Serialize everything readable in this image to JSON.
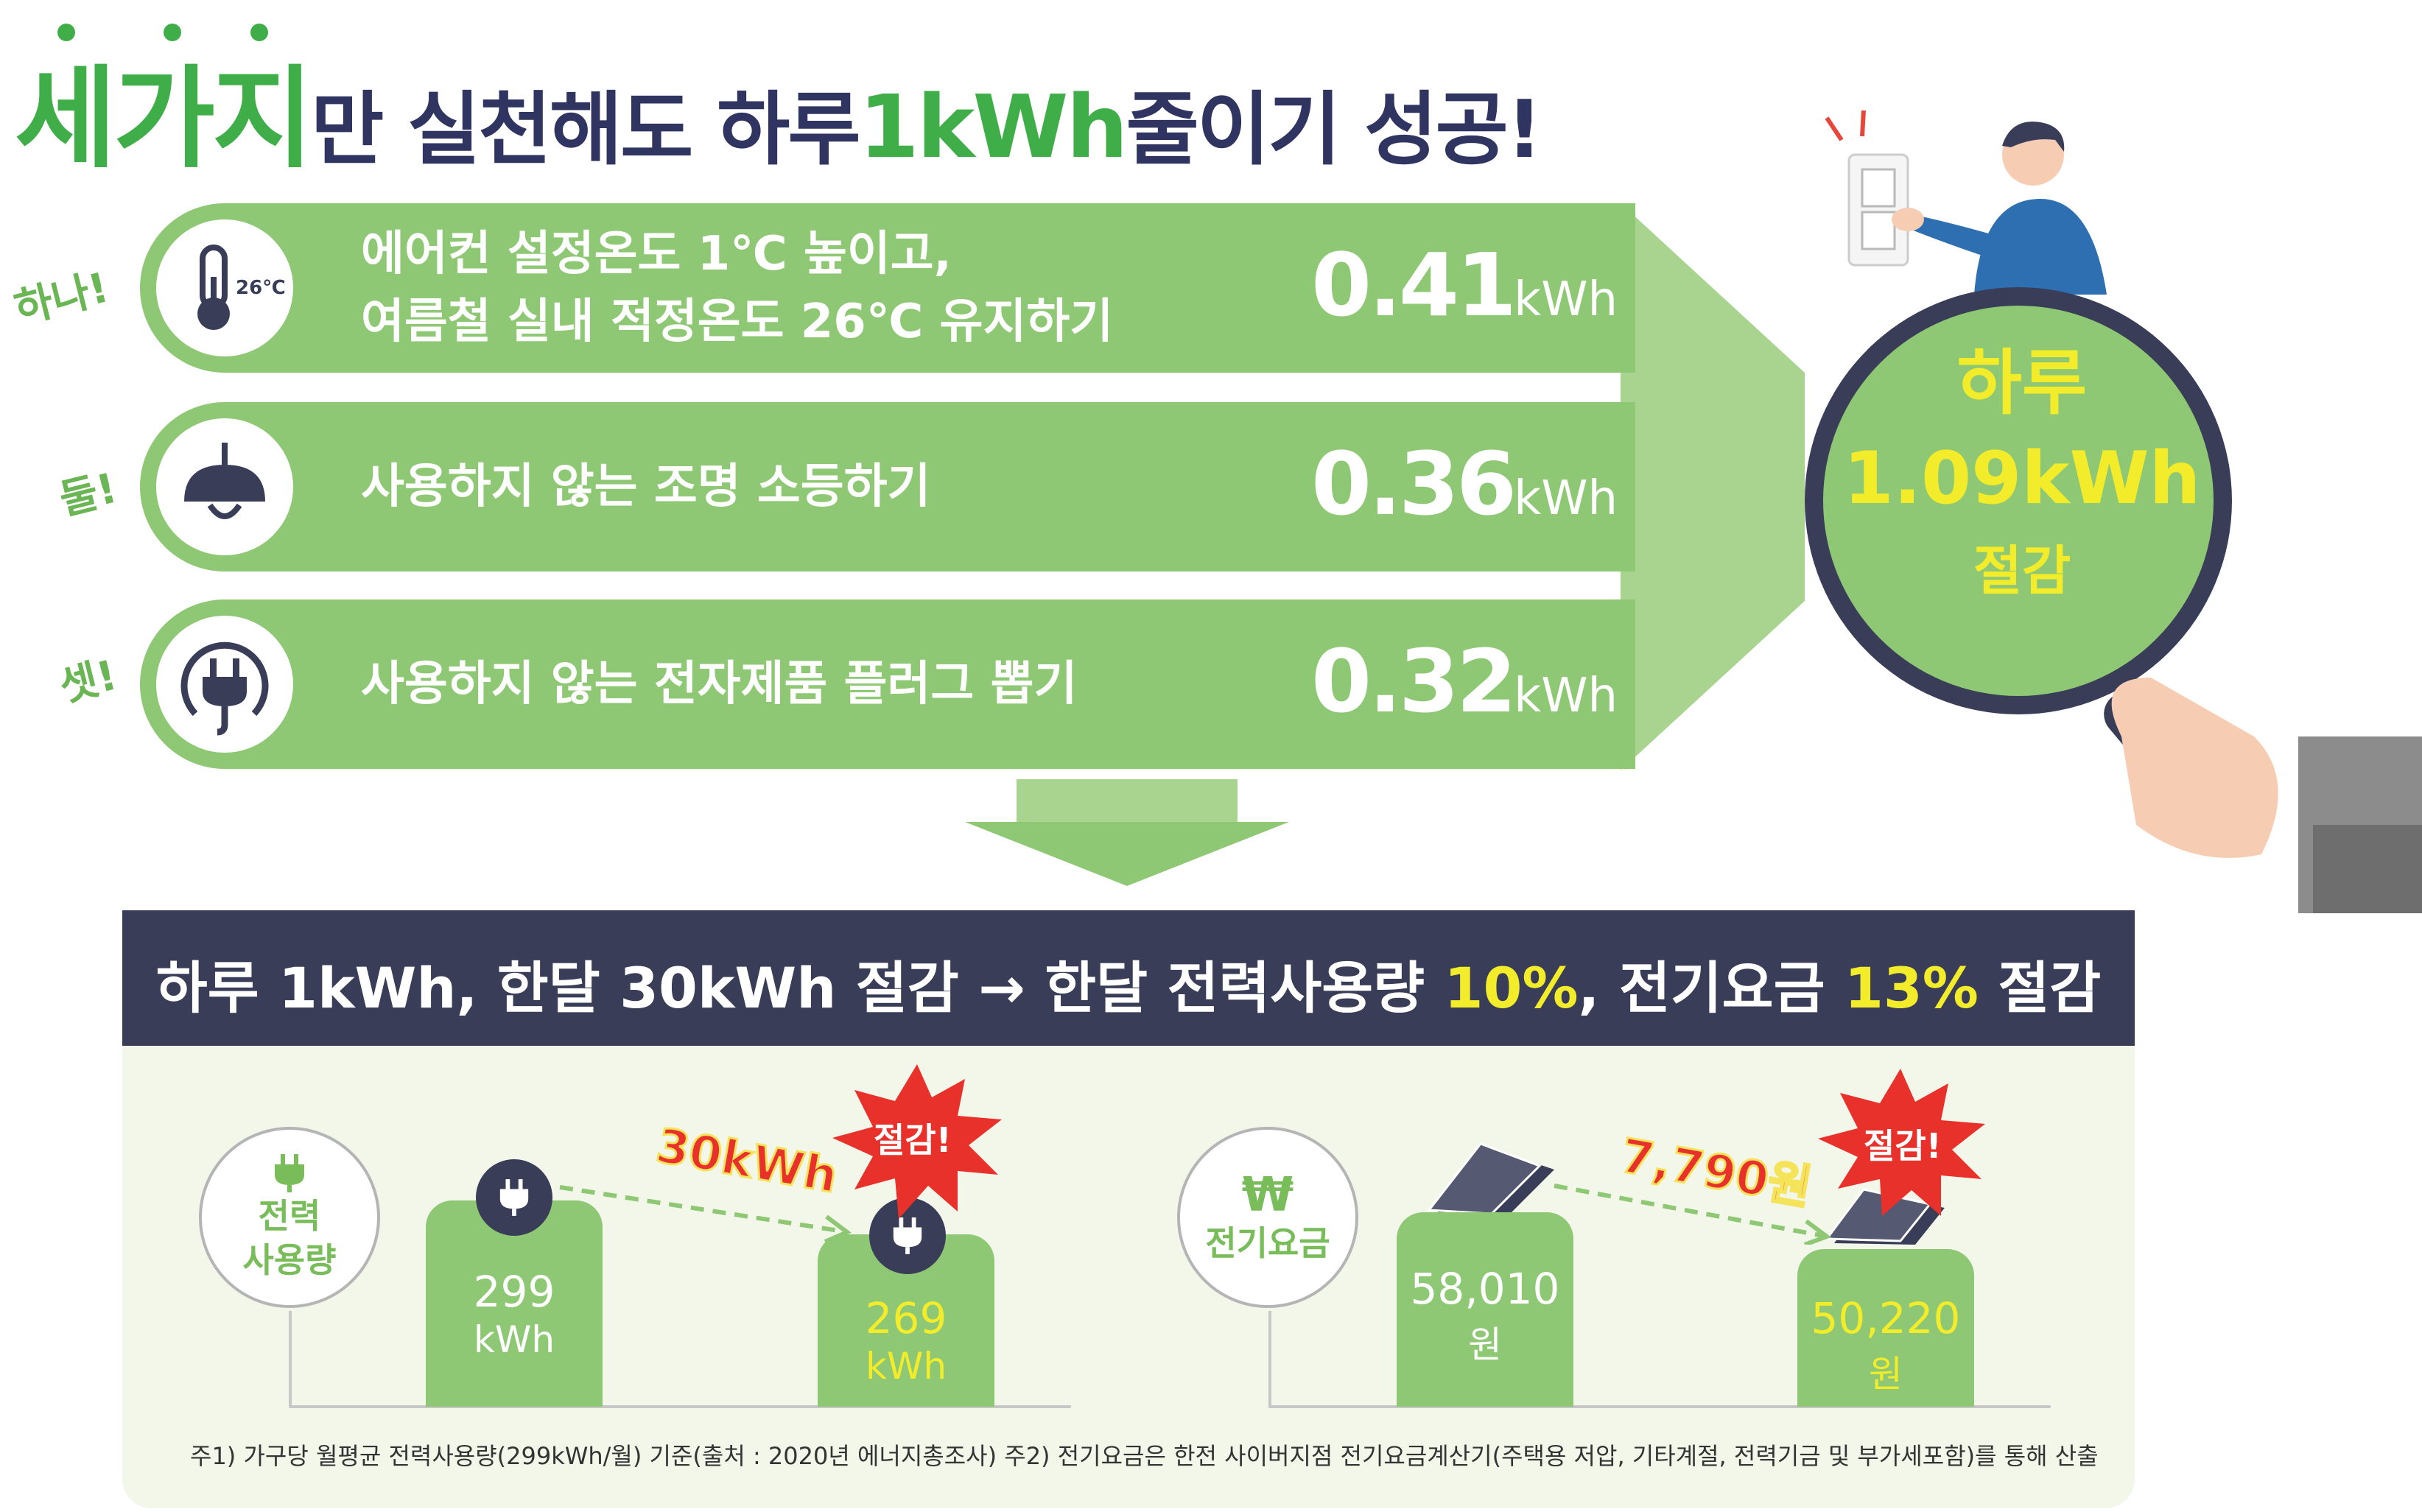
{
  "title": {
    "part1": "세가지",
    "part2": "만 실천해도 하루 ",
    "part3": "1kWh",
    "part4": " 줄이기 성공!"
  },
  "actions": [
    {
      "side_label": "하나!",
      "line1": "에어컨 설정온도 1℃ 높이고,",
      "line2": "여름철 실내 적정온도 26℃ 유지하기",
      "value": "0.41",
      "unit": "kWh",
      "icon": "thermometer-icon",
      "icon_text": "26℃"
    },
    {
      "side_label": "둘!",
      "line1": "사용하지 않는 조명 소등하기",
      "line2": "",
      "value": "0.36",
      "unit": "kWh",
      "icon": "lamp-icon"
    },
    {
      "side_label": "셋!",
      "line1": "사용하지 않는 전자제품 플러그 뽑기",
      "line2": "",
      "value": "0.32",
      "unit": "kWh",
      "icon": "plug-icon"
    }
  ],
  "magnifier": {
    "line1": "하루",
    "line2": "1.09kWh",
    "line3": "절감"
  },
  "banner": {
    "a": "하루 1kWh, 한달 30kWh 절감 → 한달 전력사용량 ",
    "b": "10%",
    "c": ", 전기요금 ",
    "d": "13%",
    "e": " 절감"
  },
  "power": {
    "label_line1": "전력",
    "label_line2": "사용량",
    "before_value": "299",
    "before_unit": "kWh",
    "after_value": "269",
    "after_unit": "kWh",
    "saving": "30kWh",
    "burst": "절감!"
  },
  "bill": {
    "label": "전기요금",
    "symbol": "₩",
    "before_value": "58,010",
    "before_unit": "원",
    "after_value": "50,220",
    "after_unit": "원",
    "saving": "7,790원",
    "burst": "절감!"
  },
  "footnote": "주1) 가구당 월평균 전력사용량(299kWh/월) 기준(출처 : 2020년 에너지총조사)   주2) 전기요금은 한전 사이버지점 전기요금계산기(주택용 저압, 기타계절, 전력기금 및 부가세포함)를 통해 산출",
  "colors": {
    "green": "#8fc874",
    "title_green": "#3fae49",
    "navy": "#3a3d57",
    "yellow": "#f2ec2a",
    "red": "#e8312a"
  }
}
